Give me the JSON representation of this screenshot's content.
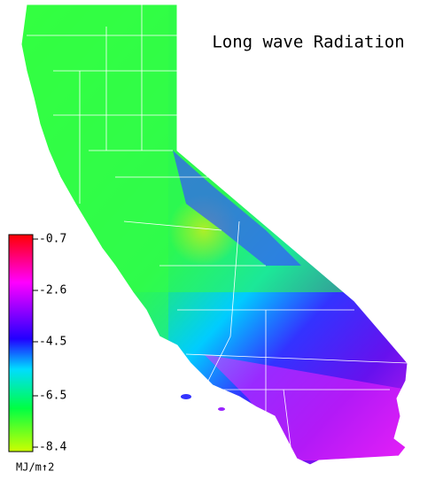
{
  "title": "Long wave Radiation",
  "colorbar": {
    "lim": [
      -8.4,
      -0.7
    ],
    "ticks": [
      -0.7,
      -2.6,
      -4.5,
      -6.5,
      -8.4
    ],
    "unit": "MJ/m↑2"
  }
}
